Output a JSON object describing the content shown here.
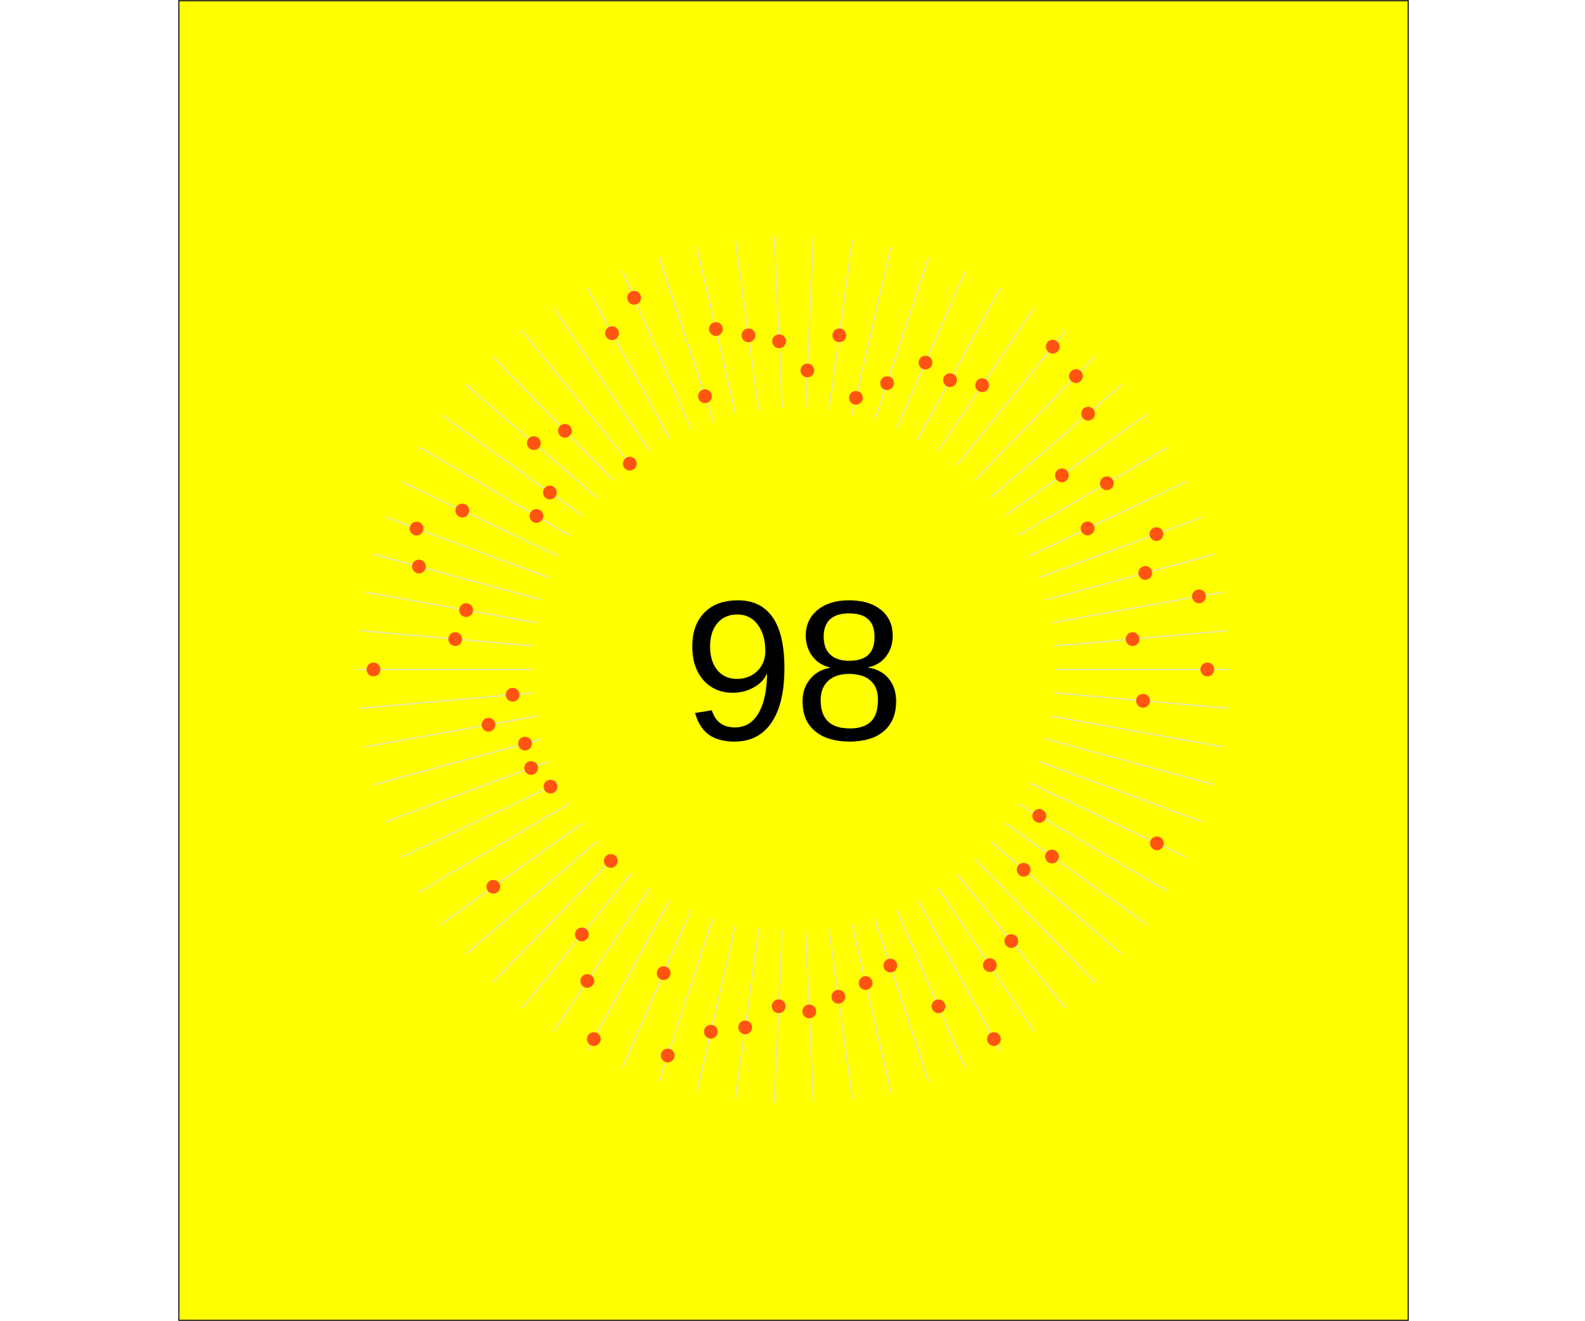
{
  "board": {
    "background_color": "#ffff00",
    "border_color": "#000000",
    "spoke_color": "#e6e6a6",
    "dot_color": "#ff5511"
  },
  "score": {
    "value": "98"
  },
  "spokes": [
    {
      "dot": 0.87
    },
    {
      "dot": 0.51
    },
    {
      "dot": null
    },
    {
      "dot": null
    },
    {
      "dot": null
    },
    {
      "dot": 0.81
    },
    {
      "dot": 0.14
    },
    {
      "dot": 0.33
    },
    {
      "dot": 0.25
    },
    {
      "dot": null
    },
    {
      "dot": 0.5
    },
    {
      "dot": 0.54
    },
    {
      "dot": 0.92
    },
    {
      "dot": 0.61
    },
    {
      "dot": 0.29
    },
    {
      "dot": 0.35
    },
    {
      "dot": 0.4
    },
    {
      "dot": 0.47
    },
    {
      "dot": 0.44
    },
    {
      "dot": 0.58
    },
    {
      "dot": 0.64
    },
    {
      "dot": 0.84
    },
    {
      "dot": 0.4
    },
    {
      "dot": 0.92
    },
    {
      "dot": 0.65
    },
    {
      "dot": 0.45
    },
    {
      "dot": 0.02
    },
    {
      "dot": null
    },
    {
      "dot": 0.63
    },
    {
      "dot": null
    },
    {
      "dot": 0.05
    },
    {
      "dot": 0.11
    },
    {
      "dot": 0.1
    },
    {
      "dot": 0.28
    },
    {
      "dot": 0.12
    },
    {
      "dot": 0.91
    },
    {
      "dot": 0.45
    },
    {
      "dot": 0.41
    },
    {
      "dot": 0.73
    },
    {
      "dot": 0.81
    },
    {
      "dot": 0.61
    },
    {
      "dot": 0.22
    },
    {
      "dot": 0.23
    },
    {
      "dot": 0.48
    },
    {
      "dot": 0.4
    },
    {
      "dot": 0.01
    },
    {
      "dot": null
    },
    {
      "dot": 0.7
    },
    {
      "dot": 0.83
    },
    {
      "dot": 0.15
    },
    {
      "dot": 0.51
    },
    {
      "dot": 0.44
    },
    {
      "dot": 0.39
    },
    {
      "dot": 0.22
    },
    {
      "dot": 0.44
    },
    {
      "dot": 0.1
    },
    {
      "dot": 0.23
    },
    {
      "dot": 0.42
    },
    {
      "dot": 0.39
    },
    {
      "dot": 0.46
    },
    {
      "dot": 0.88
    },
    {
      "dot": 0.84
    },
    {
      "dot": 0.74
    },
    {
      "dot": 0.4
    },
    {
      "dot": 0.59
    },
    {
      "dot": 0.37
    },
    {
      "dot": 0.72
    },
    {
      "dot": 0.59
    },
    {
      "dot": 0.86
    },
    {
      "dot": 0.45
    }
  ]
}
